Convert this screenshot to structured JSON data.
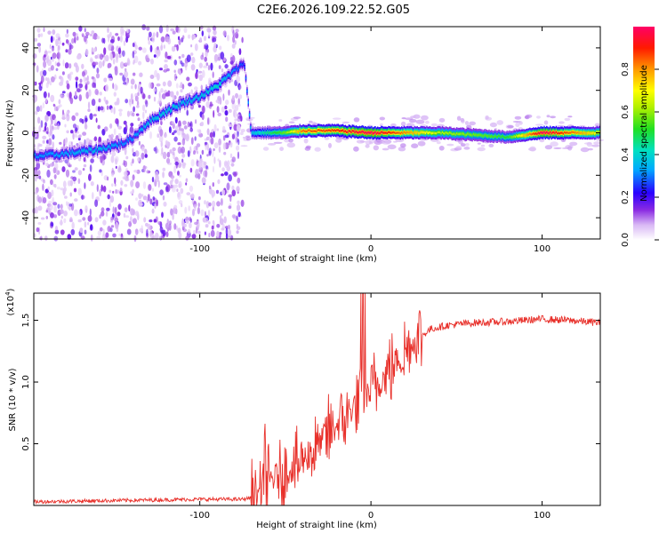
{
  "title": "C2E6.2026.109.22.52.G05",
  "chart_data": [
    {
      "type": "heatmap",
      "name": "spectrogram",
      "xlabel": "Height of straight line (km)",
      "ylabel": "Frequency (Hz)",
      "xlim": [
        -197,
        134
      ],
      "ylim": [
        -50,
        50
      ],
      "xticks": [
        -100,
        0,
        100
      ],
      "yticks": [
        -40,
        -20,
        0,
        20,
        40
      ],
      "colorbar": {
        "label": "Normalized spectral amplitude",
        "range": [
          0,
          1
        ],
        "ticks": [
          "0.0",
          "0.2",
          "0.4",
          "0.6",
          "0.8"
        ]
      },
      "ridge": {
        "x": [
          -195,
          -180,
          -160,
          -145,
          -140,
          -130,
          -120,
          -110,
          -100,
          -90,
          -80,
          -74,
          -70,
          -60,
          -50,
          -40,
          -20,
          0,
          40,
          80,
          100,
          134
        ],
        "frequency_hz": [
          -11,
          -10,
          -8,
          -5,
          -3,
          5,
          10,
          14,
          17,
          22,
          29,
          33,
          0,
          0,
          0,
          1,
          1,
          0,
          0,
          -2,
          0,
          0
        ],
        "amplitude": [
          0.3,
          0.32,
          0.35,
          0.3,
          0.3,
          0.35,
          0.38,
          0.35,
          0.35,
          0.4,
          0.3,
          0.25,
          0.35,
          0.45,
          0.55,
          0.8,
          0.85,
          0.95,
          0.6,
          0.5,
          0.95,
          0.65
        ]
      }
    },
    {
      "type": "line",
      "name": "snr",
      "xlabel": "Height of straight line (km)",
      "ylabel": "SNR (10 * v/v)",
      "scale_label": "(x10",
      "scale_exponent": "4",
      "xlim": [
        -197,
        134
      ],
      "ylim": [
        0,
        1.72
      ],
      "xticks": [
        -100,
        0,
        100
      ],
      "yticks": [
        0.5,
        1.0,
        1.5
      ],
      "ytick_labels": [
        "0.5",
        "1.0",
        "1.5"
      ],
      "color": "#e8302a",
      "trend": {
        "x": [
          -197,
          -150,
          -100,
          -75,
          -68,
          -62,
          -55,
          -45,
          -38,
          -30,
          -22,
          -15,
          -8,
          -2,
          5,
          12,
          20,
          28,
          35,
          45,
          60,
          80,
          100,
          115,
          134
        ],
        "y": [
          0.03,
          0.04,
          0.05,
          0.05,
          0.07,
          0.15,
          0.25,
          0.3,
          0.4,
          0.5,
          0.62,
          0.72,
          0.82,
          0.9,
          1.0,
          1.12,
          1.25,
          1.36,
          1.43,
          1.46,
          1.48,
          1.49,
          1.51,
          1.5,
          1.48
        ]
      }
    }
  ]
}
